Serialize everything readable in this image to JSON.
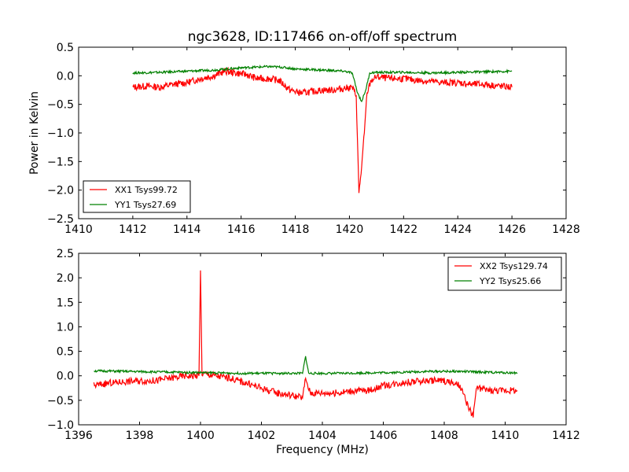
{
  "figure": {
    "title": "ngc3628, ID:117466 on-off/off spectrum"
  },
  "chart_data": [
    {
      "type": "line",
      "title": "ngc3628, ID:117466 on-off/off spectrum",
      "xlabel": "",
      "ylabel": "Power in Kelvin",
      "xlim": [
        1410,
        1428
      ],
      "ylim": [
        -2.5,
        0.5
      ],
      "xticks": [
        1410,
        1412,
        1414,
        1416,
        1418,
        1420,
        1422,
        1424,
        1426,
        1428
      ],
      "yticks": [
        -2.5,
        -2.0,
        -1.5,
        -1.0,
        -0.5,
        0.0,
        0.5
      ],
      "grid": false,
      "legend_position": "lower-left",
      "series": [
        {
          "name": "XX1 Tsys99.72",
          "color": "#ff0000",
          "x": [
            1412.0,
            1412.5,
            1413.0,
            1413.5,
            1414.0,
            1414.5,
            1415.0,
            1415.4,
            1415.8,
            1416.2,
            1416.6,
            1417.0,
            1417.4,
            1417.8,
            1418.2,
            1418.6,
            1419.0,
            1419.4,
            1419.8,
            1420.1,
            1420.25,
            1420.35,
            1420.45,
            1420.55,
            1420.65,
            1420.8,
            1421.0,
            1421.5,
            1422.0,
            1422.5,
            1423.0,
            1423.5,
            1424.0,
            1424.5,
            1425.0,
            1425.5,
            1426.0
          ],
          "values": [
            -0.2,
            -0.18,
            -0.2,
            -0.15,
            -0.12,
            -0.05,
            0.0,
            0.08,
            0.05,
            0.02,
            -0.05,
            -0.05,
            -0.08,
            -0.25,
            -0.3,
            -0.28,
            -0.25,
            -0.25,
            -0.22,
            -0.2,
            -0.35,
            -2.05,
            -1.6,
            -1.0,
            -0.3,
            -0.08,
            -0.02,
            -0.05,
            -0.05,
            -0.08,
            -0.1,
            -0.12,
            -0.12,
            -0.15,
            -0.15,
            -0.18,
            -0.2
          ]
        },
        {
          "name": "YY1 Tsys27.69",
          "color": "#008000",
          "x": [
            1412.0,
            1413.0,
            1414.0,
            1415.0,
            1416.0,
            1417.0,
            1417.5,
            1418.0,
            1419.0,
            1419.8,
            1420.1,
            1420.3,
            1420.45,
            1420.6,
            1420.75,
            1421.0,
            1422.0,
            1423.0,
            1424.0,
            1425.0,
            1426.0
          ],
          "values": [
            0.05,
            0.06,
            0.08,
            0.1,
            0.14,
            0.16,
            0.15,
            0.12,
            0.1,
            0.08,
            0.05,
            -0.3,
            -0.45,
            -0.25,
            0.05,
            0.06,
            0.06,
            0.05,
            0.06,
            0.07,
            0.08
          ]
        }
      ]
    },
    {
      "type": "line",
      "title": "",
      "xlabel": "Frequency (MHz)",
      "ylabel": "",
      "xlim": [
        1396,
        1412
      ],
      "ylim": [
        -1.0,
        2.5
      ],
      "xticks": [
        1396,
        1398,
        1400,
        1402,
        1404,
        1406,
        1408,
        1410,
        1412
      ],
      "yticks": [
        -1.0,
        -0.5,
        0.0,
        0.5,
        1.0,
        1.5,
        2.0,
        2.5
      ],
      "grid": false,
      "legend_position": "upper-right",
      "series": [
        {
          "name": "XX2 Tsys129.74",
          "color": "#ff0000",
          "x": [
            1396.5,
            1397.0,
            1397.5,
            1398.0,
            1398.5,
            1399.0,
            1399.5,
            1399.95,
            1400.0,
            1400.05,
            1400.5,
            1401.0,
            1401.5,
            1402.0,
            1402.5,
            1403.0,
            1403.35,
            1403.45,
            1403.6,
            1404.0,
            1404.5,
            1405.0,
            1405.5,
            1406.0,
            1406.5,
            1407.0,
            1407.5,
            1408.0,
            1408.5,
            1408.95,
            1409.05,
            1409.5,
            1410.0,
            1410.4
          ],
          "values": [
            -0.2,
            -0.15,
            -0.12,
            -0.1,
            -0.1,
            -0.05,
            0.0,
            0.0,
            2.15,
            0.05,
            0.0,
            -0.05,
            -0.15,
            -0.25,
            -0.35,
            -0.4,
            -0.45,
            -0.05,
            -0.35,
            -0.35,
            -0.35,
            -0.3,
            -0.3,
            -0.2,
            -0.15,
            -0.12,
            -0.1,
            -0.1,
            -0.2,
            -0.85,
            -0.25,
            -0.3,
            -0.3,
            -0.3
          ]
        },
        {
          "name": "YY2 Tsys25.66",
          "color": "#008000",
          "x": [
            1396.5,
            1397.5,
            1398.5,
            1399.5,
            1400.5,
            1401.5,
            1402.5,
            1403.35,
            1403.45,
            1403.55,
            1404.5,
            1405.5,
            1406.5,
            1407.5,
            1408.5,
            1409.5,
            1410.4
          ],
          "values": [
            0.1,
            0.09,
            0.08,
            0.07,
            0.06,
            0.05,
            0.05,
            0.05,
            0.4,
            0.05,
            0.05,
            0.06,
            0.07,
            0.09,
            0.09,
            0.07,
            0.06
          ]
        }
      ]
    }
  ]
}
